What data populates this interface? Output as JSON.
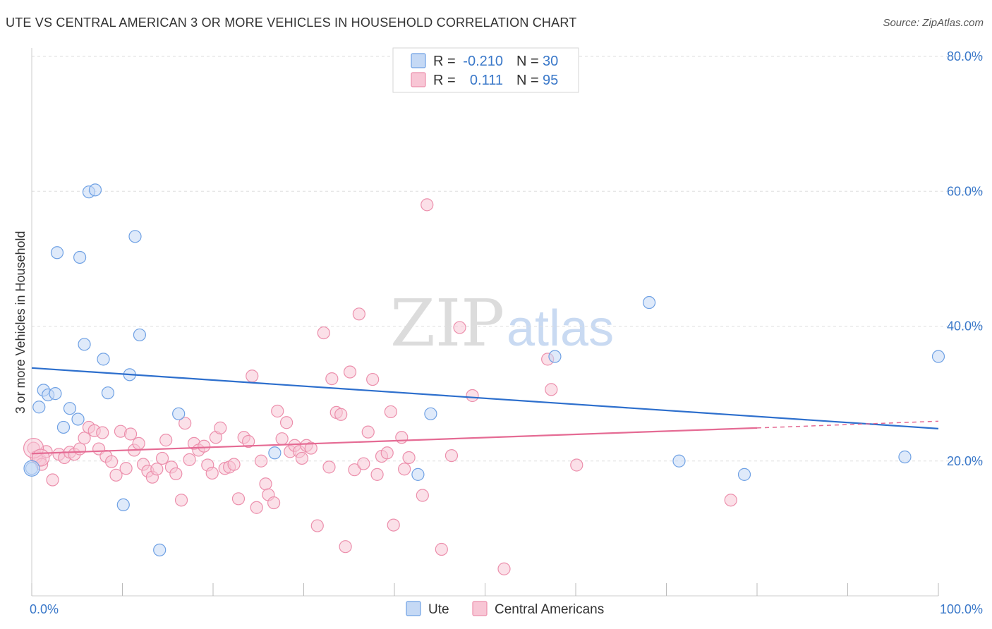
{
  "title": "UTE VS CENTRAL AMERICAN 3 OR MORE VEHICLES IN HOUSEHOLD CORRELATION CHART",
  "source": "Source: ZipAtlas.com",
  "watermark": {
    "zip": "ZIP",
    "atlas": "atlas"
  },
  "colors": {
    "ute": "#6fa1e4",
    "ute_fill": "#c5d9f5",
    "ute_line": "#2d6fcd",
    "central": "#ec8fac",
    "central_fill": "#f8c6d5",
    "central_line": "#e56b94",
    "axis_text": "#3a78c9",
    "grid": "#dddddd"
  },
  "legend": {
    "rows": [
      {
        "r_label": "R =",
        "r_value": "-0.210",
        "n_label": "N =",
        "n_value": "30"
      },
      {
        "r_label": "R =",
        "r_value": "0.111",
        "n_label": "N =",
        "n_value": "95"
      }
    ]
  },
  "bottom_legend": [
    "Ute",
    "Central Americans"
  ],
  "chart_data": {
    "type": "scatter",
    "title": "UTE VS CENTRAL AMERICAN 3 OR MORE VEHICLES IN HOUSEHOLD CORRELATION CHART",
    "xlabel": "",
    "ylabel": "3 or more Vehicles in Household",
    "xlim": [
      0,
      100
    ],
    "ylim": [
      0,
      80
    ],
    "x_tick_labels": [
      "0.0%",
      "100.0%"
    ],
    "y_ticks": [
      20,
      40,
      60,
      80
    ],
    "y_tick_labels": [
      "20.0%",
      "40.0%",
      "60.0%",
      "80.0%"
    ],
    "grid": true,
    "legend_position": "top-center",
    "series": [
      {
        "name": "Ute",
        "R": -0.21,
        "N": 30,
        "trend": {
          "x0": 0,
          "y0": 33.8,
          "x1": 100,
          "y1": 24.8
        },
        "points": [
          [
            0.0,
            18.9
          ],
          [
            0.8,
            28.0
          ],
          [
            1.3,
            30.5
          ],
          [
            1.8,
            29.8
          ],
          [
            2.6,
            30.0
          ],
          [
            2.8,
            50.9
          ],
          [
            3.5,
            25.0
          ],
          [
            4.2,
            27.8
          ],
          [
            5.1,
            26.2
          ],
          [
            5.3,
            50.2
          ],
          [
            5.8,
            37.3
          ],
          [
            6.3,
            59.9
          ],
          [
            7.0,
            60.2
          ],
          [
            7.9,
            35.1
          ],
          [
            8.4,
            30.1
          ],
          [
            10.1,
            13.5
          ],
          [
            10.8,
            32.8
          ],
          [
            11.4,
            53.3
          ],
          [
            11.9,
            38.7
          ],
          [
            14.1,
            6.8
          ],
          [
            16.2,
            27.0
          ],
          [
            26.8,
            21.2
          ],
          [
            42.6,
            18.0
          ],
          [
            44.0,
            27.0
          ],
          [
            57.7,
            35.5
          ],
          [
            68.1,
            43.5
          ],
          [
            71.4,
            20.0
          ],
          [
            78.6,
            18.0
          ],
          [
            96.3,
            20.6
          ],
          [
            100.0,
            35.5
          ]
        ]
      },
      {
        "name": "Central Americans",
        "R": 0.111,
        "N": 95,
        "trend": {
          "x0": 0,
          "y0": 21.1,
          "x1": 80,
          "y1": 24.9,
          "dashed_to": {
            "x": 100,
            "y": 25.9
          }
        },
        "points": [
          [
            0.2,
            21.9
          ],
          [
            0.9,
            20.2
          ],
          [
            1.6,
            21.4
          ],
          [
            2.3,
            17.2
          ],
          [
            3.0,
            21.0
          ],
          [
            3.6,
            20.5
          ],
          [
            4.2,
            21.3
          ],
          [
            4.7,
            21.0
          ],
          [
            5.3,
            21.8
          ],
          [
            5.8,
            23.4
          ],
          [
            6.3,
            25.0
          ],
          [
            6.9,
            24.5
          ],
          [
            7.4,
            21.8
          ],
          [
            7.8,
            24.2
          ],
          [
            8.2,
            20.7
          ],
          [
            8.8,
            19.9
          ],
          [
            9.3,
            17.9
          ],
          [
            9.8,
            24.4
          ],
          [
            10.4,
            18.9
          ],
          [
            10.9,
            24.0
          ],
          [
            11.3,
            21.6
          ],
          [
            11.8,
            22.6
          ],
          [
            12.3,
            19.5
          ],
          [
            12.8,
            18.5
          ],
          [
            13.3,
            17.6
          ],
          [
            13.8,
            18.8
          ],
          [
            14.4,
            20.4
          ],
          [
            14.8,
            23.1
          ],
          [
            15.4,
            19.1
          ],
          [
            15.9,
            18.1
          ],
          [
            16.5,
            14.2
          ],
          [
            16.9,
            25.6
          ],
          [
            17.4,
            20.2
          ],
          [
            17.9,
            22.6
          ],
          [
            18.4,
            21.6
          ],
          [
            19.0,
            22.2
          ],
          [
            19.4,
            19.4
          ],
          [
            19.9,
            18.2
          ],
          [
            20.3,
            23.5
          ],
          [
            20.8,
            24.9
          ],
          [
            21.3,
            18.9
          ],
          [
            21.8,
            19.1
          ],
          [
            22.3,
            19.5
          ],
          [
            22.8,
            14.4
          ],
          [
            23.4,
            23.5
          ],
          [
            23.9,
            22.9
          ],
          [
            24.3,
            32.6
          ],
          [
            24.8,
            13.1
          ],
          [
            25.3,
            20.0
          ],
          [
            25.8,
            16.6
          ],
          [
            26.1,
            15.0
          ],
          [
            26.7,
            13.8
          ],
          [
            27.1,
            27.4
          ],
          [
            27.6,
            23.3
          ],
          [
            28.1,
            25.7
          ],
          [
            28.5,
            21.4
          ],
          [
            29.0,
            22.3
          ],
          [
            29.5,
            21.4
          ],
          [
            29.8,
            20.4
          ],
          [
            30.3,
            22.3
          ],
          [
            30.8,
            21.9
          ],
          [
            31.5,
            10.4
          ],
          [
            32.2,
            39.0
          ],
          [
            32.8,
            19.1
          ],
          [
            33.1,
            32.2
          ],
          [
            33.6,
            27.2
          ],
          [
            34.1,
            26.9
          ],
          [
            34.6,
            7.3
          ],
          [
            35.1,
            33.2
          ],
          [
            35.6,
            18.7
          ],
          [
            36.1,
            41.8
          ],
          [
            36.6,
            19.6
          ],
          [
            37.1,
            24.3
          ],
          [
            37.6,
            32.1
          ],
          [
            38.1,
            18.0
          ],
          [
            38.6,
            20.7
          ],
          [
            39.2,
            21.2
          ],
          [
            39.6,
            27.3
          ],
          [
            39.9,
            10.5
          ],
          [
            40.8,
            23.5
          ],
          [
            41.1,
            18.8
          ],
          [
            41.6,
            20.5
          ],
          [
            43.1,
            14.9
          ],
          [
            43.6,
            58.0
          ],
          [
            45.2,
            6.9
          ],
          [
            46.3,
            20.8
          ],
          [
            47.2,
            39.8
          ],
          [
            48.6,
            29.7
          ],
          [
            52.1,
            4.0
          ],
          [
            56.9,
            35.1
          ],
          [
            57.3,
            30.6
          ],
          [
            60.1,
            19.4
          ],
          [
            77.1,
            14.2
          ],
          [
            0.5,
            20.6
          ],
          [
            1.1,
            19.5
          ]
        ]
      }
    ]
  }
}
